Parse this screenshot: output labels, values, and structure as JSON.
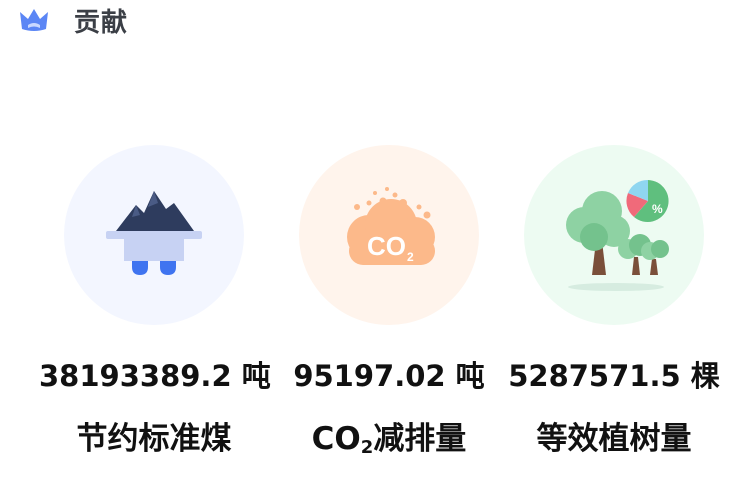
{
  "header": {
    "title": "贡献",
    "icon": "crown-icon"
  },
  "stats": [
    {
      "value": "38193389.2 吨",
      "label": "节约标准煤",
      "icon": "coal-cart-icon",
      "bg": "#f3f6ff"
    },
    {
      "value": "95197.02 吨",
      "label_prefix": "CO",
      "label_sub": "2",
      "label_suffix": "减排量",
      "icon_text_main": "CO",
      "icon_text_sub": "2",
      "icon": "co2-cloud-icon",
      "bg": "#fff4ec"
    },
    {
      "value": "5287571.5 棵",
      "label": "等效植树量",
      "icon_text": "%",
      "icon": "trees-icon",
      "bg": "#edfbf2"
    }
  ]
}
